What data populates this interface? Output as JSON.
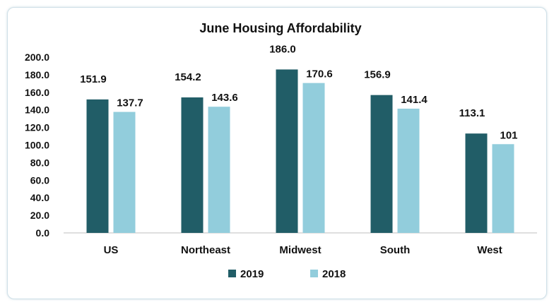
{
  "chart_data": {
    "type": "bar",
    "title": "June Housing Affordability",
    "categories": [
      "US",
      "Northeast",
      "Midwest",
      "South",
      "West"
    ],
    "series": [
      {
        "name": "2019",
        "values": [
          151.9,
          154.2,
          186.0,
          156.9,
          113.1
        ],
        "labels": [
          "151.9",
          "154.2",
          "186.0",
          "156.9",
          "113.1"
        ],
        "color": "#215d67"
      },
      {
        "name": "2018",
        "values": [
          137.7,
          143.6,
          170.6,
          141.4,
          101
        ],
        "labels": [
          "137.7",
          "143.6",
          "170.6",
          "141.4",
          "101"
        ],
        "color": "#92cddc"
      }
    ],
    "ylim": [
      0,
      200
    ],
    "yticks": [
      "0.0",
      "20.0",
      "40.0",
      "60.0",
      "80.0",
      "100.0",
      "120.0",
      "140.0",
      "160.0",
      "180.0",
      "200.0"
    ],
    "grid": false,
    "legend": "bottom"
  }
}
